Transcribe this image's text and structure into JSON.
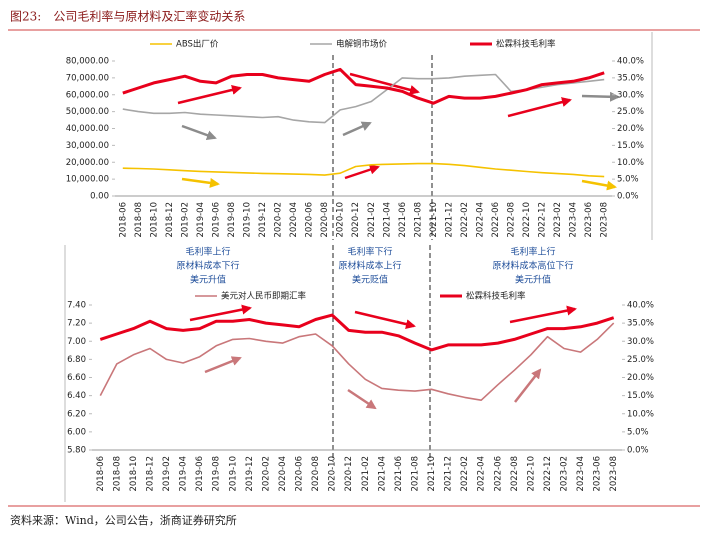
{
  "title": "图23:　公司毛利率与原材料及汇率变动关系",
  "source": "资料来源：Wind，公司公告，浙商证券研究所",
  "annotations": [
    [
      "毛利率上行",
      "原材料成本下行",
      "美元升值"
    ],
    [
      "毛利率下行",
      "原材料成本上行",
      "美元贬值"
    ],
    [
      "毛利率上行",
      "原材料成本高位下行",
      "美元升值"
    ]
  ],
  "chart_data": [
    {
      "type": "line",
      "categories": [
        "2018-06",
        "2018-08",
        "2018-10",
        "2018-12",
        "2019-02",
        "2019-04",
        "2019-06",
        "2019-08",
        "2019-10",
        "2019-12",
        "2020-02",
        "2020-04",
        "2020-06",
        "2020-08",
        "2020-10",
        "2020-12",
        "2021-02",
        "2021-04",
        "2021-06",
        "2021-08",
        "2021-10",
        "2021-12",
        "2022-02",
        "2022-04",
        "2022-06",
        "2022-08",
        "2022-10",
        "2022-12",
        "2023-02",
        "2023-04",
        "2023-06",
        "2023-08"
      ],
      "series": [
        {
          "name": "ABS出厂价",
          "color": "#f5c200",
          "axis": "y",
          "values": [
            16500,
            16300,
            16000,
            15500,
            15000,
            14600,
            14300,
            14000,
            13700,
            13400,
            13200,
            13000,
            12800,
            12400,
            13500,
            17500,
            18500,
            18800,
            19000,
            19200,
            19200,
            18800,
            18000,
            17000,
            16000,
            15300,
            14500,
            13800,
            13300,
            12800,
            12000,
            11500
          ]
        },
        {
          "name": "电解铜市场价",
          "color": "#a6a6a6",
          "axis": "y",
          "values": [
            51500,
            50000,
            49000,
            49000,
            49500,
            48500,
            48000,
            47500,
            47000,
            46500,
            47000,
            45000,
            44000,
            43500,
            51000,
            53000,
            56000,
            63000,
            70000,
            69500,
            69500,
            70000,
            71000,
            71500,
            72000,
            62000,
            63000,
            64500,
            66000,
            67000,
            68000,
            69000
          ]
        },
        {
          "name": "松霖科技毛利率",
          "color": "#e8001c",
          "axis": "y2",
          "values": [
            30.5,
            32,
            33.5,
            34.5,
            35.5,
            34,
            33.5,
            35.5,
            36,
            36,
            35,
            34.5,
            34,
            36,
            37.5,
            33,
            32.5,
            32,
            31,
            29,
            27.5,
            29.5,
            29,
            29,
            29.5,
            30.5,
            31.5,
            33,
            33.5,
            34,
            35,
            36.5
          ]
        }
      ],
      "ylim": [
        0,
        80000
      ],
      "yticks": [
        {
          "value": 0,
          "label": "0.00"
        },
        {
          "value": 10000,
          "label": "10,000.00"
        },
        {
          "value": 20000,
          "label": "20,000.00"
        },
        {
          "value": 30000,
          "label": "30,000.00"
        },
        {
          "value": 40000,
          "label": "40,000.00"
        },
        {
          "value": 50000,
          "label": "50,000.00"
        },
        {
          "value": 60000,
          "label": "60,000.00"
        },
        {
          "value": 70000,
          "label": "70,000.00"
        },
        {
          "value": 80000,
          "label": "80,000.00"
        }
      ],
      "y2lim": [
        0,
        40
      ],
      "y2ticks": [
        {
          "value": 0,
          "label": "0.0%"
        },
        {
          "value": 5,
          "label": "5.0%"
        },
        {
          "value": 10,
          "label": "10.0%"
        },
        {
          "value": 15,
          "label": "15.0%"
        },
        {
          "value": 20,
          "label": "20.0%"
        },
        {
          "value": 25,
          "label": "25.0%"
        },
        {
          "value": 30,
          "label": "30.0%"
        },
        {
          "value": 35,
          "label": "35.0%"
        },
        {
          "value": 40,
          "label": "40.0%"
        }
      ],
      "legend": "top"
    },
    {
      "type": "line",
      "categories": [
        "2018-06",
        "2018-08",
        "2018-10",
        "2018-12",
        "2019-02",
        "2019-04",
        "2019-06",
        "2019-08",
        "2019-10",
        "2019-12",
        "2020-02",
        "2020-04",
        "2020-06",
        "2020-08",
        "2020-10",
        "2020-12",
        "2021-02",
        "2021-04",
        "2021-06",
        "2021-08",
        "2021-10",
        "2021-12",
        "2022-02",
        "2022-04",
        "2022-06",
        "2022-08",
        "2022-10",
        "2022-12",
        "2023-02",
        "2023-04",
        "2023-06",
        "2023-08"
      ],
      "series": [
        {
          "name": "美元对人民币即期汇率",
          "color": "#c9777a",
          "axis": "y",
          "values": [
            6.4,
            6.75,
            6.85,
            6.92,
            6.8,
            6.76,
            6.83,
            6.95,
            7.02,
            7.03,
            7.0,
            6.98,
            7.05,
            7.08,
            6.95,
            6.75,
            6.58,
            6.48,
            6.46,
            6.45,
            6.47,
            6.42,
            6.38,
            6.35,
            6.52,
            6.68,
            6.85,
            7.05,
            6.92,
            6.88,
            7.02,
            7.2
          ]
        },
        {
          "name": "松霖科技毛利率",
          "color": "#e8001c",
          "axis": "y2",
          "values": [
            30.5,
            32,
            33.5,
            35.5,
            33.5,
            33,
            33.5,
            35.5,
            35.5,
            36,
            35,
            34.5,
            34,
            36,
            37.2,
            33,
            32.5,
            32.5,
            31.5,
            29.5,
            27.6,
            29,
            29,
            29,
            29.5,
            30.5,
            32,
            33.5,
            33.5,
            34,
            35,
            36.5
          ]
        }
      ],
      "ylim": [
        5.8,
        7.4
      ],
      "yticks": [
        {
          "value": 5.8,
          "label": "5.80"
        },
        {
          "value": 6,
          "label": "6.00"
        },
        {
          "value": 6.2,
          "label": "6.20"
        },
        {
          "value": 6.4,
          "label": "6.40"
        },
        {
          "value": 6.6,
          "label": "6.60"
        },
        {
          "value": 6.8,
          "label": "6.80"
        },
        {
          "value": 7,
          "label": "7.00"
        },
        {
          "value": 7.2,
          "label": "7.20"
        },
        {
          "value": 7.4,
          "label": "7.40"
        }
      ],
      "y2lim": [
        0,
        40
      ],
      "y2ticks": [
        {
          "value": 0,
          "label": "0.0%"
        },
        {
          "value": 5,
          "label": "5.0%"
        },
        {
          "value": 10,
          "label": "10.0%"
        },
        {
          "value": 15,
          "label": "15.0%"
        },
        {
          "value": 20,
          "label": "20.0%"
        },
        {
          "value": 25,
          "label": "25.0%"
        },
        {
          "value": 30,
          "label": "30.0%"
        },
        {
          "value": 35,
          "label": "35.0%"
        },
        {
          "value": 40,
          "label": "40.0%"
        }
      ],
      "legend": "top"
    }
  ]
}
